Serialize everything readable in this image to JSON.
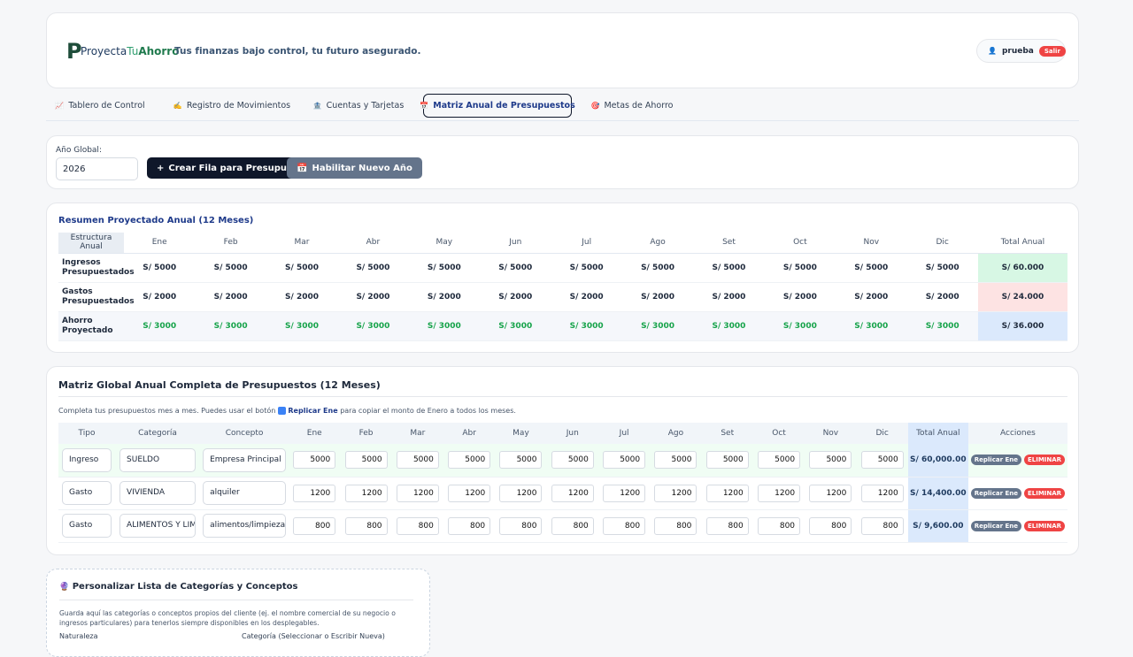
{
  "header": {
    "logo": [
      "Proyecta",
      "Tu",
      "Ahorro"
    ],
    "tagline": "Tus finanzas bajo control, tu futuro asegurado.",
    "user": "prueba",
    "logout": "Salir"
  },
  "nav": [
    {
      "icon": "📈",
      "label": "Tablero de Control"
    },
    {
      "icon": "✍️",
      "label": "Registro de Movimientos"
    },
    {
      "icon": "🏦",
      "label": "Cuentas y Tarjetas"
    },
    {
      "icon": "📅",
      "label": "Matriz Anual de Presupuestos",
      "active": true
    },
    {
      "icon": "🎯",
      "label": "Metas de Ahorro"
    }
  ],
  "controls": {
    "year_label": "Año Global:",
    "year": "2026",
    "create_button": "Crear Fila para Presupuestar",
    "new_year_button": "Habilitar Nuevo Año"
  },
  "summary": {
    "title": "Resumen Proyectado Anual (12 Meses)",
    "headers": [
      "Estructura Anual",
      "Ene",
      "Feb",
      "Mar",
      "Abr",
      "May",
      "Jun",
      "Jul",
      "Ago",
      "Set",
      "Oct",
      "Nov",
      "Dic",
      "Total Anual"
    ],
    "rows": [
      [
        "Ingresos Presupuestados",
        "S/ 5000",
        "S/ 5000",
        "S/ 5000",
        "S/ 5000",
        "S/ 5000",
        "S/ 5000",
        "S/ 5000",
        "S/ 5000",
        "S/ 5000",
        "S/ 5000",
        "S/ 5000",
        "S/ 5000",
        "S/ 60.000"
      ],
      [
        "Gastos Presupuestados",
        "S/ 2000",
        "S/ 2000",
        "S/ 2000",
        "S/ 2000",
        "S/ 2000",
        "S/ 2000",
        "S/ 2000",
        "S/ 2000",
        "S/ 2000",
        "S/ 2000",
        "S/ 2000",
        "S/ 2000",
        "S/ 24.000"
      ],
      [
        "Ahorro Proyectado",
        "S/ 3000",
        "S/ 3000",
        "S/ 3000",
        "S/ 3000",
        "S/ 3000",
        "S/ 3000",
        "S/ 3000",
        "S/ 3000",
        "S/ 3000",
        "S/ 3000",
        "S/ 3000",
        "S/ 3000",
        "S/ 36.000"
      ]
    ]
  },
  "matrix": {
    "title": "Matriz Global Anual Completa de Presupuestos (12 Meses)",
    "help": [
      "Completa tus presupuestos mes a mes. Puedes usar el botón",
      "Replicar Ene",
      "para copiar el monto de Enero a todos los meses."
    ],
    "headers": [
      "Tipo",
      "Categoría",
      "Concepto",
      "Ene",
      "Feb",
      "Mar",
      "Abr",
      "May",
      "Jun",
      "Jul",
      "Ago",
      "Set",
      "Oct",
      "Nov",
      "Dic",
      "Total Anual",
      "Acciones"
    ],
    "actions": [
      "Replicar Ene",
      "ELIMINAR"
    ],
    "rows": [
      {
        "tipo": "Ingreso",
        "categoria": "SUELDO",
        "concepto": "Empresa Principal",
        "values": [
          "5000",
          "5000",
          "5000",
          "5000",
          "5000",
          "5000",
          "5000",
          "5000",
          "5000",
          "5000",
          "5000",
          "5000"
        ],
        "total": "S/ 60,000.00"
      },
      {
        "tipo": "Gasto",
        "categoria": "VIVIENDA",
        "concepto": "alquiler",
        "values": [
          "1200",
          "1200",
          "1200",
          "1200",
          "1200",
          "1200",
          "1200",
          "1200",
          "1200",
          "1200",
          "1200",
          "1200"
        ],
        "total": "S/ 14,400.00"
      },
      {
        "tipo": "Gasto",
        "categoria": "ALIMENTOS Y LIMPIEZA",
        "concepto": "alimentos/limpieza",
        "values": [
          "800",
          "800",
          "800",
          "800",
          "800",
          "800",
          "800",
          "800",
          "800",
          "800",
          "800",
          "800"
        ],
        "total": "S/ 9,600.00"
      }
    ]
  },
  "custom": {
    "icon": "🔮",
    "title": "Personalizar Lista de Categorías y Conceptos",
    "description": "Guarda aquí las categorías o conceptos propios del cliente (ej. el nombre comercial de su negocio o ingresos particulares) para tenerlos siempre disponibles en los desplegables.",
    "labels": [
      "Naturaleza",
      "Categoría (Seleccionar o Escribir Nueva)"
    ]
  }
}
